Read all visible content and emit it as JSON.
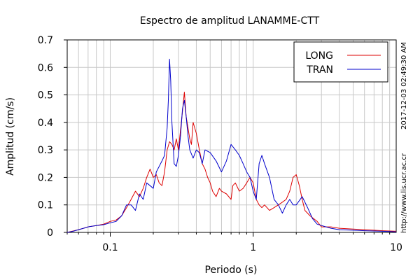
{
  "chart_data": {
    "type": "line",
    "title": "Espectro de amplitud LANAMME-CTT",
    "xlabel": "Periodo (s)",
    "ylabel": "Amplitud (cm/s)",
    "x_scale": "log",
    "xlim": [
      0.05,
      10
    ],
    "ylim": [
      0,
      0.7
    ],
    "x_ticks": [
      {
        "v": 0.1,
        "label": "0.1"
      },
      {
        "v": 1,
        "label": "1"
      },
      {
        "v": 10,
        "label": "10"
      }
    ],
    "y_ticks": [
      {
        "v": 0,
        "label": "0"
      },
      {
        "v": 0.1,
        "label": "0.1"
      },
      {
        "v": 0.2,
        "label": "0.2"
      },
      {
        "v": 0.3,
        "label": "0.3"
      },
      {
        "v": 0.4,
        "label": "0.4"
      },
      {
        "v": 0.5,
        "label": "0.5"
      },
      {
        "v": 0.6,
        "label": "0.6"
      },
      {
        "v": 0.7,
        "label": "0.7"
      }
    ],
    "grid": true,
    "legend_position": "top-right",
    "series": [
      {
        "name": "LONG",
        "color": "#dd0000",
        "x": [
          0.05,
          0.055,
          0.06,
          0.065,
          0.07,
          0.08,
          0.09,
          0.1,
          0.11,
          0.12,
          0.13,
          0.14,
          0.15,
          0.16,
          0.17,
          0.18,
          0.19,
          0.2,
          0.21,
          0.22,
          0.23,
          0.24,
          0.25,
          0.26,
          0.27,
          0.28,
          0.29,
          0.3,
          0.32,
          0.33,
          0.34,
          0.35,
          0.36,
          0.37,
          0.38,
          0.4,
          0.42,
          0.44,
          0.46,
          0.48,
          0.5,
          0.52,
          0.55,
          0.58,
          0.6,
          0.65,
          0.7,
          0.72,
          0.75,
          0.8,
          0.85,
          0.9,
          0.95,
          1.0,
          1.05,
          1.1,
          1.15,
          1.2,
          1.3,
          1.4,
          1.5,
          1.6,
          1.7,
          1.8,
          1.9,
          2.0,
          2.1,
          2.2,
          2.3,
          2.5,
          2.8,
          3.0,
          3.5,
          4.0,
          5.0,
          6.0,
          7.0,
          8.0,
          9.0,
          10.0
        ],
        "y": [
          0.0,
          0.005,
          0.01,
          0.015,
          0.02,
          0.025,
          0.03,
          0.04,
          0.045,
          0.06,
          0.09,
          0.12,
          0.15,
          0.13,
          0.16,
          0.2,
          0.23,
          0.2,
          0.21,
          0.18,
          0.17,
          0.22,
          0.3,
          0.33,
          0.32,
          0.3,
          0.34,
          0.3,
          0.44,
          0.51,
          0.42,
          0.38,
          0.34,
          0.32,
          0.4,
          0.36,
          0.3,
          0.25,
          0.23,
          0.2,
          0.18,
          0.15,
          0.13,
          0.16,
          0.15,
          0.14,
          0.12,
          0.17,
          0.18,
          0.15,
          0.16,
          0.18,
          0.2,
          0.18,
          0.12,
          0.1,
          0.09,
          0.1,
          0.08,
          0.09,
          0.1,
          0.11,
          0.12,
          0.15,
          0.2,
          0.21,
          0.17,
          0.12,
          0.08,
          0.06,
          0.04,
          0.02,
          0.02,
          0.015,
          0.012,
          0.01,
          0.008,
          0.006,
          0.005,
          0.004
        ]
      },
      {
        "name": "TRAN",
        "color": "#0000cc",
        "x": [
          0.05,
          0.055,
          0.06,
          0.065,
          0.07,
          0.08,
          0.09,
          0.1,
          0.11,
          0.12,
          0.13,
          0.14,
          0.15,
          0.16,
          0.17,
          0.18,
          0.19,
          0.2,
          0.21,
          0.22,
          0.23,
          0.24,
          0.25,
          0.255,
          0.26,
          0.265,
          0.27,
          0.28,
          0.29,
          0.3,
          0.31,
          0.32,
          0.33,
          0.34,
          0.35,
          0.36,
          0.38,
          0.4,
          0.42,
          0.44,
          0.46,
          0.5,
          0.55,
          0.6,
          0.65,
          0.7,
          0.75,
          0.8,
          0.85,
          0.9,
          0.95,
          1.0,
          1.05,
          1.1,
          1.15,
          1.2,
          1.3,
          1.4,
          1.5,
          1.6,
          1.7,
          1.8,
          1.9,
          2.0,
          2.2,
          2.4,
          2.6,
          2.8,
          3.0,
          3.5,
          4.0,
          5.0,
          6.0,
          7.0,
          8.0,
          9.0,
          10.0
        ],
        "y": [
          0.0,
          0.004,
          0.01,
          0.015,
          0.02,
          0.025,
          0.028,
          0.035,
          0.04,
          0.06,
          0.1,
          0.1,
          0.08,
          0.14,
          0.12,
          0.18,
          0.17,
          0.16,
          0.22,
          0.24,
          0.26,
          0.28,
          0.38,
          0.48,
          0.63,
          0.55,
          0.4,
          0.25,
          0.24,
          0.28,
          0.35,
          0.45,
          0.48,
          0.42,
          0.35,
          0.3,
          0.27,
          0.3,
          0.29,
          0.25,
          0.3,
          0.29,
          0.26,
          0.22,
          0.26,
          0.32,
          0.3,
          0.28,
          0.25,
          0.22,
          0.2,
          0.15,
          0.12,
          0.25,
          0.28,
          0.25,
          0.2,
          0.12,
          0.1,
          0.07,
          0.1,
          0.12,
          0.1,
          0.1,
          0.13,
          0.09,
          0.05,
          0.03,
          0.025,
          0.015,
          0.01,
          0.008,
          0.006,
          0.005,
          0.004,
          0.003,
          0.002
        ]
      }
    ],
    "side_label_url": "http://www.lis.ucr.ac.cr",
    "side_label_timestamp": "2017-12-03 02:49:30 AM"
  }
}
